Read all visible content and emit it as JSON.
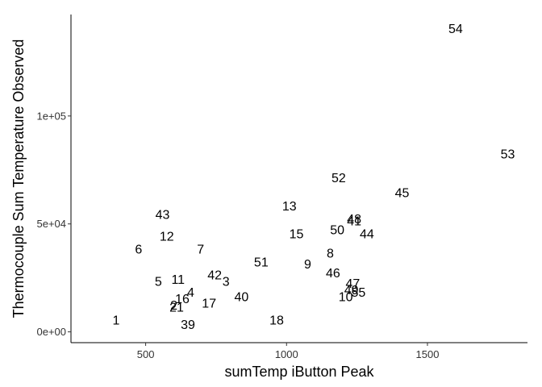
{
  "chart_data": {
    "type": "scatter",
    "marker": "text-label",
    "xlabel": "sumTemp iButton Peak",
    "ylabel": "Thermocouple Sum Temperature Observed",
    "xlim": [
      235,
      1855
    ],
    "ylim": [
      -5000,
      147000
    ],
    "x_ticks": [
      500,
      1000,
      1500
    ],
    "x_tick_labels": [
      "500",
      "1000",
      "1500"
    ],
    "y_ticks": [
      0,
      50000,
      100000
    ],
    "y_tick_labels": [
      "0e+00",
      "5e+04",
      "1e+05"
    ],
    "grid": false,
    "points": [
      {
        "label": "54",
        "x": 1600,
        "y": 140000
      },
      {
        "label": "53",
        "x": 1785,
        "y": 82000
      },
      {
        "label": "52",
        "x": 1185,
        "y": 71000
      },
      {
        "label": "45",
        "x": 1410,
        "y": 64000
      },
      {
        "label": "13",
        "x": 1010,
        "y": 58000
      },
      {
        "label": "43",
        "x": 560,
        "y": 54000
      },
      {
        "label": "48",
        "x": 1240,
        "y": 52000
      },
      {
        "label": "41",
        "x": 1240,
        "y": 51000
      },
      {
        "label": "50",
        "x": 1180,
        "y": 47000
      },
      {
        "label": "44",
        "x": 1285,
        "y": 45000
      },
      {
        "label": "15",
        "x": 1035,
        "y": 45000
      },
      {
        "label": "12",
        "x": 575,
        "y": 44000
      },
      {
        "label": "6",
        "x": 475,
        "y": 38000
      },
      {
        "label": "7",
        "x": 695,
        "y": 38000
      },
      {
        "label": "8",
        "x": 1155,
        "y": 36000
      },
      {
        "label": "51",
        "x": 910,
        "y": 32000
      },
      {
        "label": "9",
        "x": 1075,
        "y": 31000
      },
      {
        "label": "46",
        "x": 1165,
        "y": 27000
      },
      {
        "label": "42",
        "x": 745,
        "y": 26000
      },
      {
        "label": "11",
        "x": 615,
        "y": 24000
      },
      {
        "label": "5",
        "x": 545,
        "y": 23000
      },
      {
        "label": "3",
        "x": 785,
        "y": 23000
      },
      {
        "label": "47",
        "x": 1235,
        "y": 22000
      },
      {
        "label": "49",
        "x": 1230,
        "y": 19000
      },
      {
        "label": "55",
        "x": 1255,
        "y": 18000
      },
      {
        "label": "4",
        "x": 660,
        "y": 18000
      },
      {
        "label": "10",
        "x": 1210,
        "y": 16000
      },
      {
        "label": "40",
        "x": 840,
        "y": 16000
      },
      {
        "label": "16",
        "x": 630,
        "y": 15000
      },
      {
        "label": "17",
        "x": 725,
        "y": 13000
      },
      {
        "label": "2",
        "x": 600,
        "y": 12000
      },
      {
        "label": "21",
        "x": 610,
        "y": 11000
      },
      {
        "label": "1",
        "x": 395,
        "y": 5000
      },
      {
        "label": "18",
        "x": 965,
        "y": 5000
      },
      {
        "label": "39",
        "x": 650,
        "y": 3000
      }
    ]
  }
}
